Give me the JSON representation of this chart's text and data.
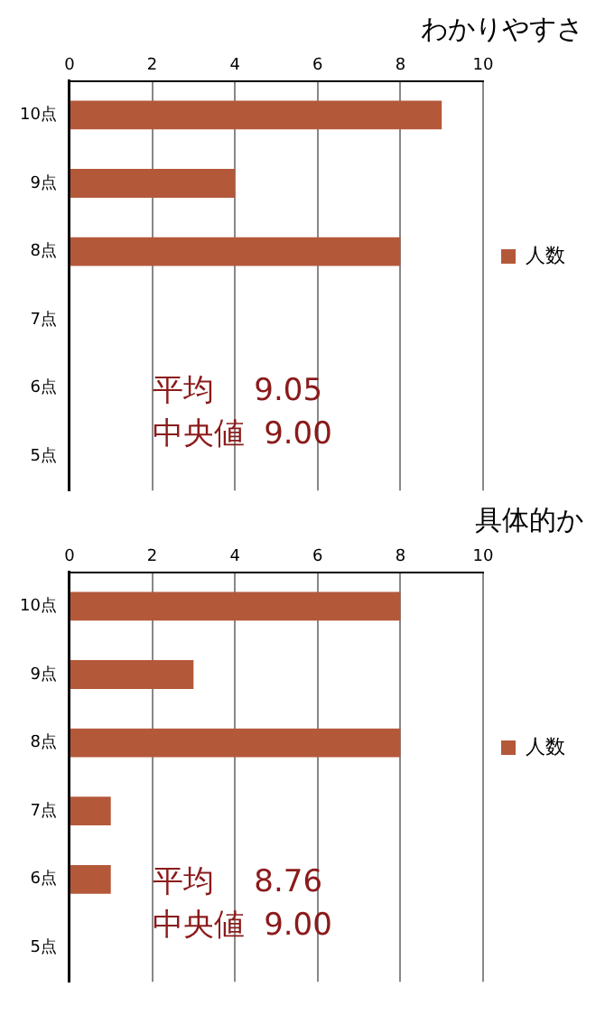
{
  "chart_data": [
    {
      "type": "bar",
      "orientation": "horizontal",
      "title": "わかりやすさ",
      "categories": [
        "10点",
        "9点",
        "8点",
        "7点",
        "6点",
        "5点"
      ],
      "series": [
        {
          "name": "人数",
          "color": "#b4583a",
          "values": [
            9,
            4,
            8,
            0,
            0,
            0
          ]
        }
      ],
      "xlim": [
        0,
        10
      ],
      "xticks": [
        0,
        2,
        4,
        6,
        8,
        10
      ],
      "grid": "x",
      "legend": "right",
      "annotations": [
        "平均　 9.05",
        "中央値  9.00"
      ]
    },
    {
      "type": "bar",
      "orientation": "horizontal",
      "title": "具体的か",
      "categories": [
        "10点",
        "9点",
        "8点",
        "7点",
        "6点",
        "5点"
      ],
      "series": [
        {
          "name": "人数",
          "color": "#b4583a",
          "values": [
            8,
            3,
            8,
            1,
            1,
            0
          ]
        }
      ],
      "xlim": [
        0,
        10
      ],
      "xticks": [
        0,
        2,
        4,
        6,
        8,
        10
      ],
      "grid": "x",
      "legend": "right",
      "annotations": [
        "平均　 8.76",
        "中央値  9.00"
      ]
    }
  ]
}
